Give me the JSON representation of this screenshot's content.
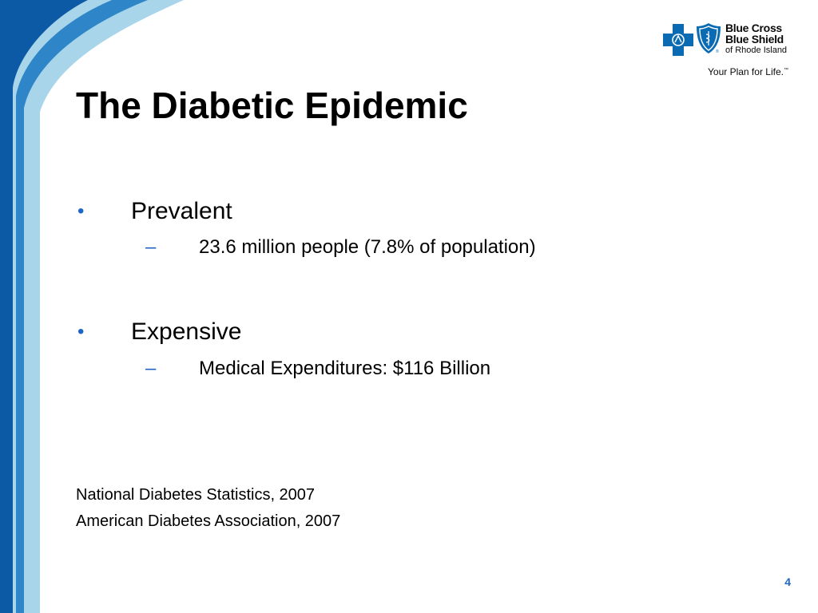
{
  "slide": {
    "title": "The Diabetic Epidemic",
    "page_number": "4"
  },
  "logo": {
    "line1": "Blue Cross",
    "line2": "Blue Shield",
    "line3": "of Rhode Island",
    "tagline": "Your Plan for Life.",
    "tagline_mark": "™",
    "cross_icon": "blue-cross-icon",
    "shield_icon": "blue-shield-icon"
  },
  "bullets": [
    {
      "marker": "•",
      "label": "Prevalent",
      "sub_marker": "–",
      "sub": "23.6 million people (7.8% of population)"
    },
    {
      "marker": "•",
      "label": "Expensive",
      "sub_marker": "–",
      "sub": "Medical Expenditures: $116 Billion"
    }
  ],
  "sources": [
    "National Diabetes Statistics, 2007",
    "American Diabetes Association, 2007"
  ],
  "colors": {
    "accent_blue": "#1f66c4",
    "deco_dark_blue": "#0c5aa6",
    "deco_mid_blue": "#2e86c8",
    "deco_light_blue": "#a9d5ea",
    "logo_blue": "#0a6bb3"
  }
}
